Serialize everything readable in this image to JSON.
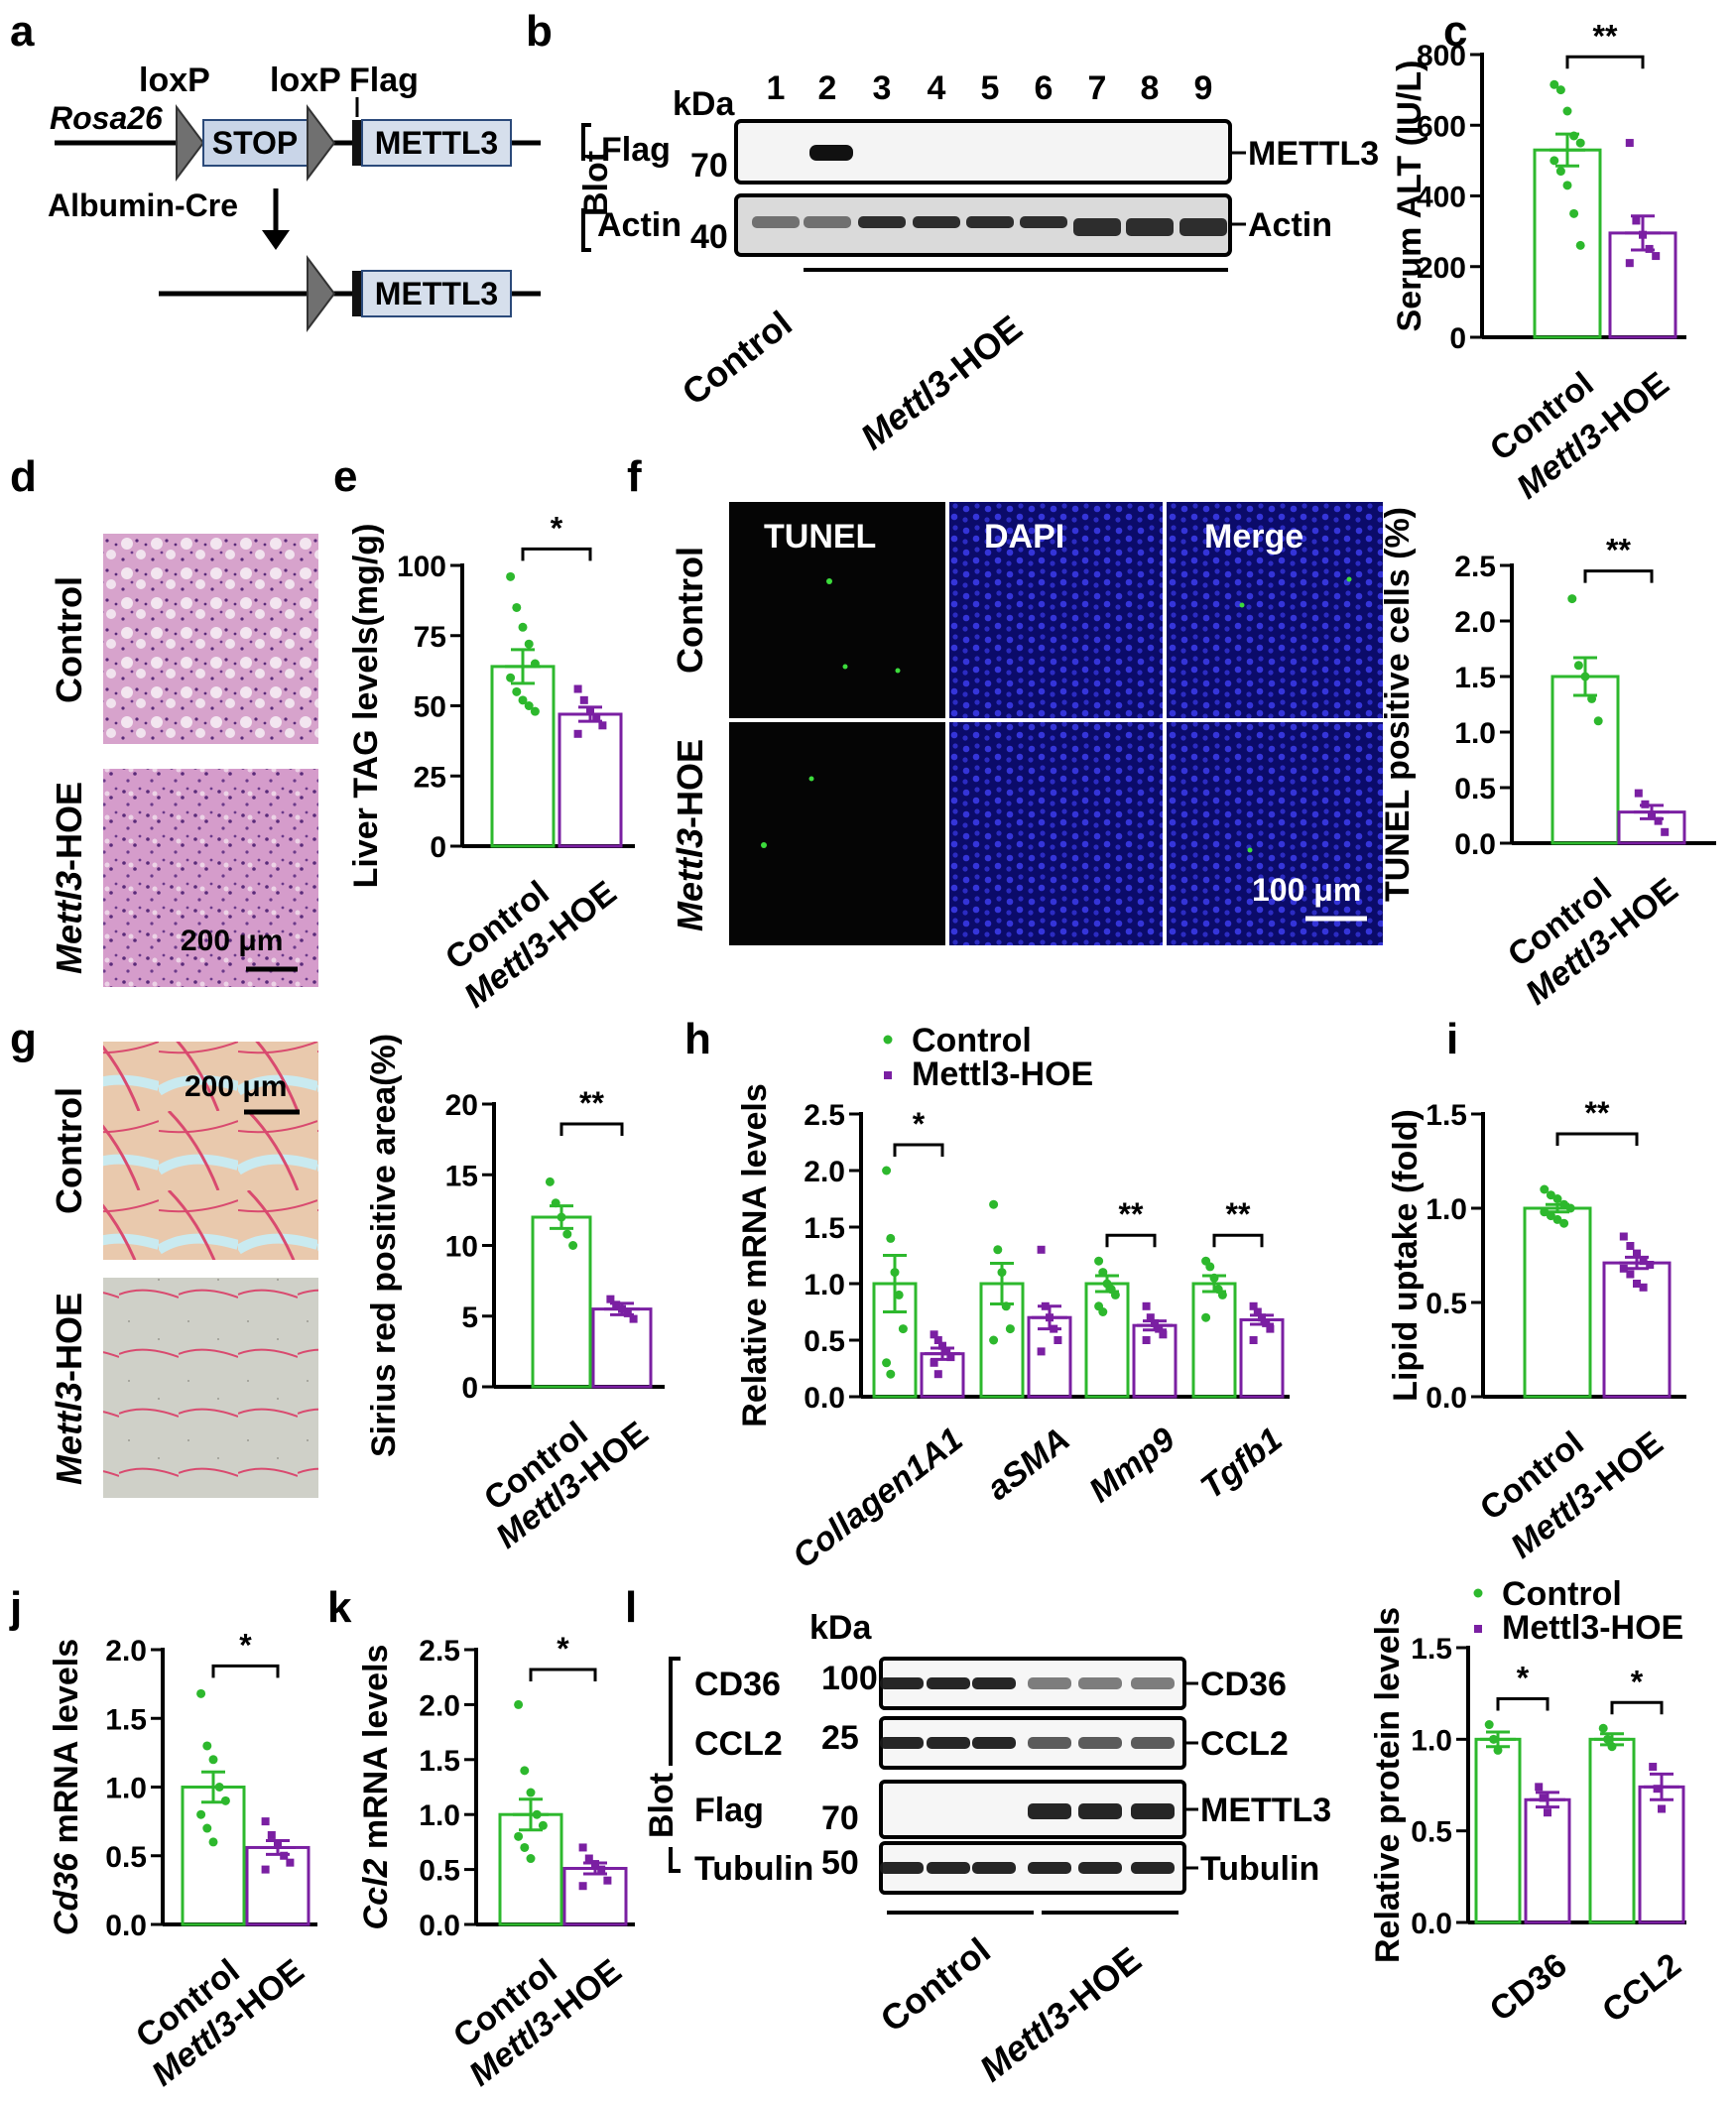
{
  "panel_letters": {
    "a": "a",
    "b": "b",
    "c": "c",
    "d": "d",
    "e": "e",
    "f": "f",
    "g": "g",
    "h": "h",
    "i": "i",
    "j": "j",
    "k": "k",
    "l": "l"
  },
  "colors": {
    "control": "#2db82d",
    "hoe": "#7a1fa2",
    "blot_bg": "#f4f4f4",
    "band": "#1a1a1a",
    "he_fill": "#d8a9d0",
    "sirius_fill": "#e9cbb0",
    "fluor_bg": "#0a0a6e"
  },
  "groups": {
    "control": "Control",
    "hoe_italic": "Mettl3",
    "hoe_suffix": "-HOE",
    "hoe_k_full": "Mettl3-HOE"
  },
  "panel_a": {
    "loxp1": "loxP",
    "loxp2": "loxP",
    "flag": "Flag",
    "rosa": "Rosa26",
    "stop": "STOP",
    "mettl3": "METTL3",
    "cre": "Albumin-Cre",
    "mettl3_b": "METTL3"
  },
  "panel_b": {
    "kda": "kDa",
    "lanes": [
      "1",
      "2",
      "3",
      "4",
      "5",
      "6",
      "7",
      "8",
      "9"
    ],
    "blot": "Blot",
    "rows": [
      {
        "label": "Flag",
        "kda": "70",
        "right": "METTL3"
      },
      {
        "label": "Actin",
        "kda": "40",
        "right": "Actin"
      }
    ]
  },
  "panel_d": {
    "scale": "200 μm",
    "row1": "Control"
  },
  "panel_f": {
    "cols": [
      "TUNEL",
      "DAPI",
      "Merge"
    ],
    "row1": "Control",
    "scale": "100 μm"
  },
  "panel_g": {
    "scale": "200 μm",
    "row1": "Control"
  },
  "panel_l": {
    "kda": "kDa",
    "blot": "Blot",
    "rows": [
      {
        "label": "CD36",
        "kda": "100",
        "right": "CD36"
      },
      {
        "label": "CCL2",
        "kda": "25",
        "right": "CCL2"
      },
      {
        "label": "Flag",
        "kda": "70",
        "right": "METTL3"
      },
      {
        "label": "Tubulin",
        "kda": "50",
        "right": "Tubulin"
      }
    ]
  },
  "chart_data": [
    {
      "id": "c",
      "type": "bar",
      "ylabel": "Serum ALT (IU/L)",
      "ylim": [
        0,
        800
      ],
      "yticks": [
        0,
        200,
        400,
        600,
        800
      ],
      "categories": [
        "Control",
        "Mettl3-HOE"
      ],
      "values": [
        530,
        295
      ],
      "sem": [
        45,
        48
      ],
      "sig": "**",
      "points": [
        [
          715,
          700,
          640,
          570,
          550,
          500,
          470,
          430,
          350,
          260
        ],
        [
          550,
          330,
          290,
          250,
          230,
          210
        ]
      ]
    },
    {
      "id": "e",
      "type": "bar",
      "ylabel": "Liver TAG levels(mg/g)",
      "ylim": [
        0,
        100
      ],
      "yticks": [
        0,
        25,
        50,
        75,
        100
      ],
      "categories": [
        "Control",
        "Mettl3-HOE"
      ],
      "values": [
        64,
        47
      ],
      "sem": [
        6,
        2.5
      ],
      "sig": "*",
      "points": [
        [
          96,
          85,
          78,
          72,
          65,
          60,
          55,
          52,
          50,
          48
        ],
        [
          56,
          52,
          48,
          46,
          43,
          40
        ]
      ]
    },
    {
      "id": "f",
      "type": "bar",
      "ylabel": "TUNEL positive cells (%)",
      "ylim": [
        0,
        2.5
      ],
      "yticks": [
        0.0,
        0.5,
        1.0,
        1.5,
        2.0,
        2.5
      ],
      "categories": [
        "Control",
        "Mettl3-HOE"
      ],
      "values": [
        1.5,
        0.28
      ],
      "sem": [
        0.17,
        0.06
      ],
      "sig": "**",
      "points": [
        [
          2.2,
          1.6,
          1.5,
          1.3,
          1.1
        ],
        [
          0.45,
          0.35,
          0.25,
          0.2,
          0.1
        ]
      ]
    },
    {
      "id": "g",
      "type": "bar",
      "ylabel": "Sirius red positive area(%)",
      "ylim": [
        0,
        20
      ],
      "yticks": [
        0,
        5,
        10,
        15,
        20
      ],
      "categories": [
        "Control",
        "Mettl3-HOE"
      ],
      "values": [
        12,
        5.5
      ],
      "sem": [
        0.8,
        0.4
      ],
      "sig": "**",
      "points": [
        [
          14.5,
          13,
          12,
          10.8,
          10
        ],
        [
          6.2,
          5.8,
          5.5,
          5.2,
          4.8
        ]
      ]
    },
    {
      "id": "h",
      "type": "bar",
      "ylabel": "Relative mRNA levels",
      "ylim": [
        0,
        2.5
      ],
      "yticks": [
        0.0,
        0.5,
        1.0,
        1.5,
        2.0,
        2.5
      ],
      "categories": [
        "Collagen1A1",
        "aSMA",
        "Mmp9",
        "Tgfb1"
      ],
      "series": [
        {
          "name": "Control",
          "values": [
            1.0,
            1.0,
            1.0,
            1.0
          ],
          "sem": [
            0.25,
            0.18,
            0.07,
            0.07
          ],
          "points": [
            [
              2.0,
              1.4,
              1.1,
              0.9,
              0.6,
              0.3,
              0.2
            ],
            [
              1.7,
              1.3,
              1.1,
              0.8,
              0.6,
              0.5
            ],
            [
              1.2,
              1.1,
              1.0,
              0.95,
              0.9,
              0.8,
              0.75
            ],
            [
              1.2,
              1.15,
              1.05,
              0.95,
              0.9,
              0.7
            ]
          ]
        },
        {
          "name": "Mettl3-HOE",
          "values": [
            0.38,
            0.7,
            0.63,
            0.68
          ],
          "sem": [
            0.05,
            0.1,
            0.04,
            0.04
          ],
          "points": [
            [
              0.55,
              0.5,
              0.45,
              0.4,
              0.35,
              0.3,
              0.2
            ],
            [
              1.3,
              0.8,
              0.7,
              0.6,
              0.5,
              0.4
            ],
            [
              0.8,
              0.7,
              0.65,
              0.6,
              0.55,
              0.5
            ],
            [
              0.8,
              0.75,
              0.7,
              0.65,
              0.6,
              0.5
            ]
          ]
        }
      ],
      "sig": [
        "*",
        "",
        "**",
        "**"
      ],
      "legend": "top"
    },
    {
      "id": "i",
      "type": "bar",
      "ylabel": "Lipid uptake (fold)",
      "ylim": [
        0,
        1.5
      ],
      "yticks": [
        0.0,
        0.5,
        1.0,
        1.5
      ],
      "categories": [
        "Control",
        "Mettl3-HOE"
      ],
      "values": [
        1.0,
        0.71
      ],
      "sem": [
        0.02,
        0.03
      ],
      "sig": "**",
      "points": [
        [
          1.1,
          1.07,
          1.05,
          1.02,
          1.0,
          0.98,
          0.96,
          0.94,
          0.92
        ],
        [
          0.85,
          0.8,
          0.76,
          0.72,
          0.7,
          0.68,
          0.65,
          0.6,
          0.58
        ]
      ]
    },
    {
      "id": "j",
      "type": "bar",
      "ylabel_italic": "Cd36",
      "ylabel": " mRNA levels",
      "ylim": [
        0,
        2.0
      ],
      "yticks": [
        0.0,
        0.5,
        1.0,
        1.5,
        2.0
      ],
      "categories": [
        "Control",
        "Mettl3-HOE"
      ],
      "values": [
        1.0,
        0.56
      ],
      "sem": [
        0.11,
        0.05
      ],
      "sig": "*",
      "points": [
        [
          1.68,
          1.3,
          1.2,
          1.0,
          0.9,
          0.8,
          0.7,
          0.6
        ],
        [
          0.75,
          0.65,
          0.58,
          0.5,
          0.45,
          0.4
        ]
      ]
    },
    {
      "id": "k",
      "type": "bar",
      "ylabel_italic": "Ccl2",
      "ylabel": " mRNA levels",
      "ylim": [
        0,
        2.5
      ],
      "yticks": [
        0.0,
        0.5,
        1.0,
        1.5,
        2.0,
        2.5
      ],
      "categories": [
        "Control",
        "Mettl3-HOE"
      ],
      "values": [
        1.0,
        0.51
      ],
      "sem": [
        0.14,
        0.05
      ],
      "sig": "*",
      "points": [
        [
          2.0,
          1.4,
          1.2,
          1.0,
          0.9,
          0.8,
          0.7,
          0.6
        ],
        [
          0.7,
          0.6,
          0.55,
          0.5,
          0.4,
          0.35
        ]
      ]
    },
    {
      "id": "l",
      "type": "bar",
      "ylabel": "Relative protein levels",
      "ylim": [
        0,
        1.5
      ],
      "yticks": [
        0.0,
        0.5,
        1.0,
        1.5
      ],
      "categories": [
        "CD36",
        "CCL2"
      ],
      "series": [
        {
          "name": "Control",
          "values": [
            1.0,
            1.0
          ],
          "sem": [
            0.04,
            0.03
          ],
          "points": [
            [
              1.08,
              1.0,
              0.94
            ],
            [
              1.06,
              1.0,
              0.96
            ]
          ]
        },
        {
          "name": "Mettl3-HOE",
          "values": [
            0.67,
            0.74
          ],
          "sem": [
            0.04,
            0.07
          ],
          "points": [
            [
              0.74,
              0.68,
              0.6
            ],
            [
              0.85,
              0.73,
              0.62
            ]
          ]
        }
      ],
      "sig": [
        "*",
        "*"
      ],
      "legend": "top"
    }
  ]
}
